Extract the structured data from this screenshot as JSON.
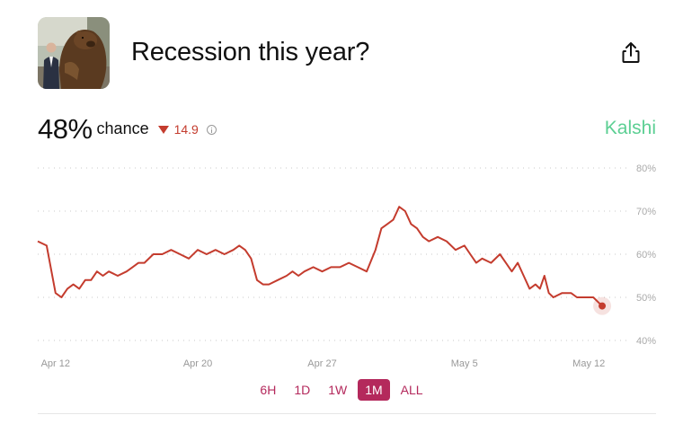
{
  "question": {
    "title": "Recession this year?"
  },
  "stats": {
    "probability": "48%",
    "chance_label": "chance",
    "change": "14.9",
    "change_direction": "down"
  },
  "brand": {
    "name": "Kalshi",
    "color": "#5ccf93"
  },
  "ranges": [
    {
      "label": "6H",
      "active": false
    },
    {
      "label": "1D",
      "active": false
    },
    {
      "label": "1W",
      "active": false
    },
    {
      "label": "1M",
      "active": true
    },
    {
      "label": "ALL",
      "active": false
    }
  ],
  "icons": {
    "share": "share-icon",
    "info": "info-icon",
    "change": "triangle-down-icon"
  },
  "chart_data": {
    "type": "line",
    "x_unit": "date",
    "x_ticks": [
      "Apr 12",
      "Apr 20",
      "Apr 27",
      "May 5",
      "May 12"
    ],
    "y_ticks": [
      "80%",
      "70%",
      "60%",
      "50%",
      "40%"
    ],
    "ylim": [
      40,
      80
    ],
    "xlim": [
      "Apr 11",
      "May 13"
    ],
    "grid": true,
    "series": [
      {
        "color": "#c43c2e",
        "points": [
          [
            "Apr 11",
            63
          ],
          [
            "Apr 11",
            62
          ],
          [
            "Apr 12",
            51
          ],
          [
            "Apr 12",
            50
          ],
          [
            "Apr 12",
            52
          ],
          [
            "Apr 13",
            53
          ],
          [
            "Apr 13",
            52
          ],
          [
            "Apr 13",
            54
          ],
          [
            "Apr 14",
            54
          ],
          [
            "Apr 14",
            56
          ],
          [
            "Apr 14",
            55
          ],
          [
            "Apr 15",
            56
          ],
          [
            "Apr 15",
            55
          ],
          [
            "Apr 16",
            56
          ],
          [
            "Apr 16",
            57
          ],
          [
            "Apr 16",
            58
          ],
          [
            "Apr 17",
            58
          ],
          [
            "Apr 17",
            60
          ],
          [
            "Apr 18",
            60
          ],
          [
            "Apr 18",
            61
          ],
          [
            "Apr 19",
            60
          ],
          [
            "Apr 19",
            59
          ],
          [
            "Apr 20",
            61
          ],
          [
            "Apr 20",
            60
          ],
          [
            "Apr 21",
            61
          ],
          [
            "Apr 21",
            60
          ],
          [
            "Apr 22",
            61
          ],
          [
            "Apr 22",
            62
          ],
          [
            "Apr 22",
            61
          ],
          [
            "Apr 23",
            59
          ],
          [
            "Apr 23",
            54
          ],
          [
            "Apr 23",
            53
          ],
          [
            "Apr 24",
            53
          ],
          [
            "Apr 24",
            54
          ],
          [
            "Apr 25",
            55
          ],
          [
            "Apr 25",
            56
          ],
          [
            "Apr 25",
            55
          ],
          [
            "Apr 26",
            56
          ],
          [
            "Apr 26",
            57
          ],
          [
            "Apr 27",
            56
          ],
          [
            "Apr 27",
            57
          ],
          [
            "Apr 28",
            57
          ],
          [
            "Apr 28",
            58
          ],
          [
            "Apr 29",
            57
          ],
          [
            "Apr 29",
            56
          ],
          [
            "Apr 30",
            61
          ],
          [
            "Apr 30",
            66
          ],
          [
            "Apr 30",
            67
          ],
          [
            "May 1",
            68
          ],
          [
            "May 1",
            71
          ],
          [
            "May 1",
            70
          ],
          [
            "May 2",
            67
          ],
          [
            "May 2",
            66
          ],
          [
            "May 2",
            64
          ],
          [
            "May 3",
            63
          ],
          [
            "May 3",
            64
          ],
          [
            "May 4",
            63
          ],
          [
            "May 4",
            61
          ],
          [
            "May 5",
            62
          ],
          [
            "May 5",
            60
          ],
          [
            "May 5",
            58
          ],
          [
            "May 6",
            59
          ],
          [
            "May 6",
            58
          ],
          [
            "May 7",
            60
          ],
          [
            "May 7",
            58
          ],
          [
            "May 7",
            56
          ],
          [
            "May 8",
            58
          ],
          [
            "May 8",
            55
          ],
          [
            "May 8",
            52
          ],
          [
            "May 9",
            53
          ],
          [
            "May 9",
            52
          ],
          [
            "May 9",
            55
          ],
          [
            "May 9",
            51
          ],
          [
            "May 10",
            50
          ],
          [
            "May 10",
            51
          ],
          [
            "May 11",
            51
          ],
          [
            "May 11",
            50
          ],
          [
            "May 11",
            50
          ],
          [
            "May 12",
            50
          ],
          [
            "May 12",
            50
          ],
          [
            "May 12",
            49
          ],
          [
            "May 12",
            48
          ]
        ]
      }
    ]
  }
}
